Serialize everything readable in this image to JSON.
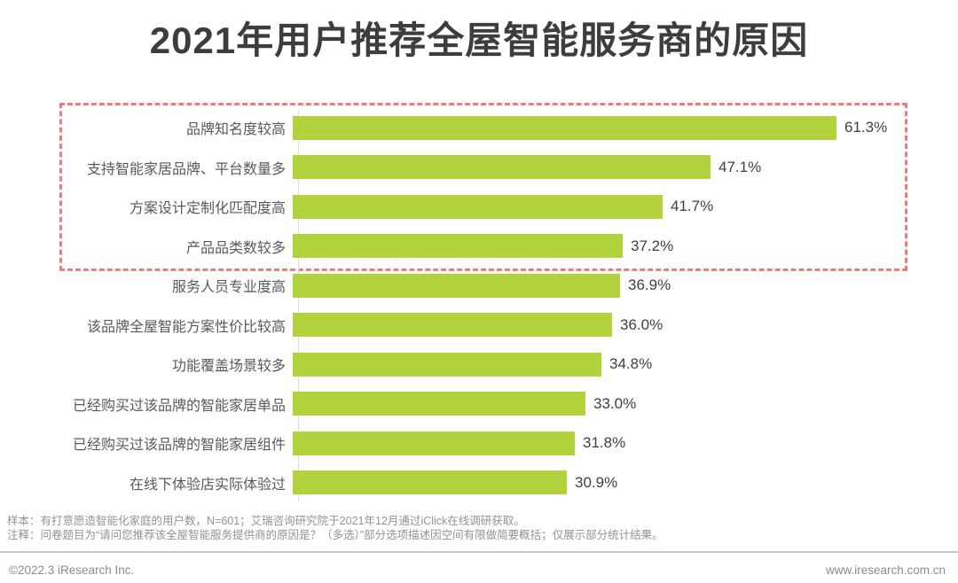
{
  "page": {
    "title": "2021年用户推荐全屋智能服务商的原因"
  },
  "chart_data": {
    "type": "bar",
    "orientation": "horizontal",
    "title": "2021年用户推荐全屋智能服务商的原因",
    "categories": [
      "品牌知名度较高",
      "支持智能家居品牌、平台数量多",
      "方案设计定制化匹配度高",
      "产品品类数较多",
      "服务人员专业度高",
      "该品牌全屋智能方案性价比较高",
      "功能覆盖场景较多",
      "已经购买过该品牌的智能家居单品",
      "已经购买过该品牌的智能家居组件",
      "在线下体验店实际体验过"
    ],
    "values": [
      61.3,
      47.1,
      41.7,
      37.2,
      36.9,
      36.0,
      34.8,
      33.0,
      31.8,
      30.9
    ],
    "value_labels": [
      "61.3%",
      "47.1%",
      "41.7%",
      "37.2%",
      "36.9%",
      "36.0%",
      "34.8%",
      "33.0%",
      "31.8%",
      "30.9%"
    ],
    "xlim": [
      0,
      65
    ],
    "grid": false,
    "legend": null,
    "highlighted_rows": [
      0,
      1,
      2,
      3
    ]
  },
  "notes": {
    "line1": "样本：有打意愿造智能化家庭的用户数，N=601；艾瑞咨询研究院于2021年12月通过iClick在线调研获取。",
    "line2": "注释：问卷题目为“请问您推荐该全屋智能服务提供商的原因是？（多选）”部分选项描述因空间有限做简要概括；仅展示部分统计结果。"
  },
  "footer": {
    "copyright": "©2022.3 iResearch Inc.",
    "website": "www.iresearch.com.cn"
  },
  "colors": {
    "bar": "#b2d33e",
    "highlight_border": "#ed7d7d",
    "title_text": "#3d3d3d",
    "label_text": "#5a5a5a",
    "value_text": "#404040",
    "note_text": "#939393",
    "footer_text": "#8c8c8c",
    "divider": "#c9c9c9",
    "background": "#ffffff"
  }
}
